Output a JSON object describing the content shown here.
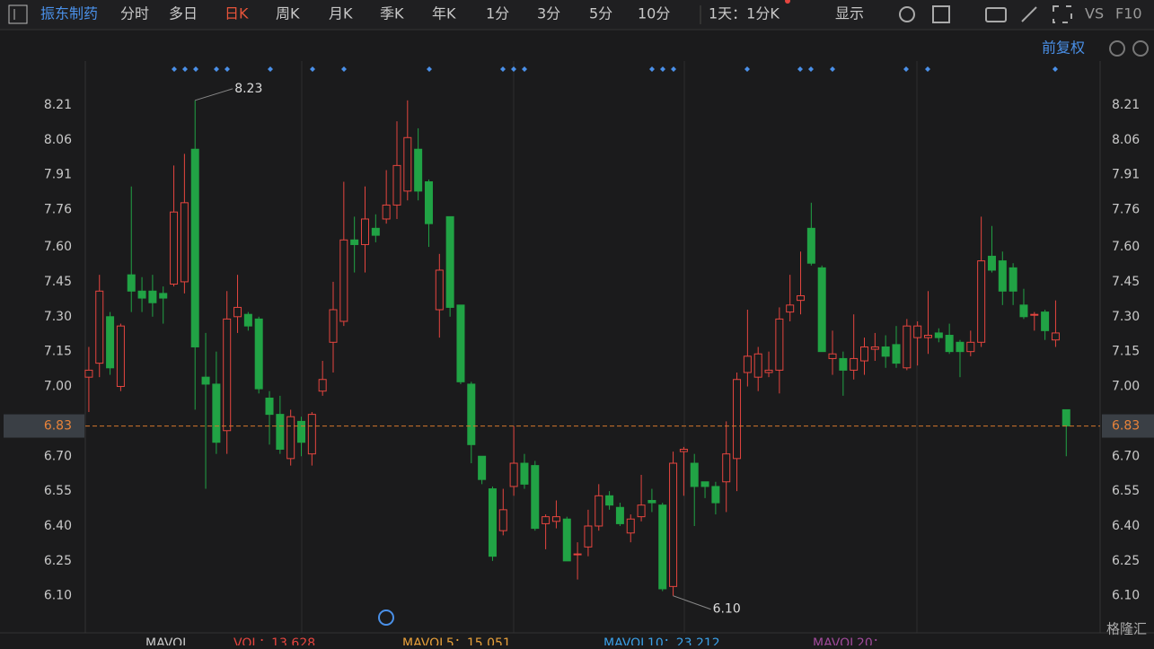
{
  "toolbar": {
    "stock": "振东制药",
    "tabs": [
      "分时",
      "多日",
      "日K",
      "周K",
      "月K",
      "季K",
      "年K",
      "1分",
      "3分",
      "5分",
      "10分"
    ],
    "period": "1天：1分K",
    "display": "显示",
    "vs": "VS",
    "f10": "F10",
    "adjust": "前复权"
  },
  "volume_legend": {
    "mavol": "MAVOL",
    "vol": "VOL：13.628",
    "mavol5": "MAVOL5：15.051",
    "mavol10": "MAVOL10：23.212",
    "mavol20": "MAVOL20："
  },
  "watermark": "格隆汇",
  "chart_data": {
    "type": "candlestick",
    "open": [
      7.04,
      7.1,
      7.3,
      7.0,
      7.48,
      7.41,
      7.41,
      7.4,
      7.44,
      7.45,
      8.02,
      7.04,
      7.01,
      6.81,
      7.3,
      7.31,
      7.29,
      6.95,
      6.88,
      6.69,
      6.85,
      6.71,
      6.98,
      7.19,
      7.28,
      7.63,
      7.61,
      7.68,
      7.72,
      7.78,
      7.84,
      8.02,
      7.88,
      7.33,
      7.73,
      7.35,
      7.01,
      6.7,
      6.56,
      6.38,
      6.57,
      6.67,
      6.66,
      6.41,
      6.42,
      6.43,
      6.28,
      6.31,
      6.4,
      6.53,
      6.48,
      6.37,
      6.44,
      6.51,
      6.49,
      6.14,
      6.72,
      6.67,
      6.59,
      6.57,
      6.59,
      6.69,
      7.06,
      7.04,
      7.06,
      7.07,
      7.32,
      7.37,
      7.68,
      7.51,
      7.12,
      7.12,
      7.07,
      7.11,
      7.16,
      7.17,
      7.18,
      7.08,
      7.21,
      7.21,
      7.23,
      7.22,
      7.19,
      7.15,
      7.19,
      7.56,
      7.54,
      7.51,
      7.35,
      7.31,
      7.32,
      7.2,
      6.9
    ],
    "high": [
      7.17,
      7.48,
      7.32,
      7.27,
      7.86,
      7.47,
      7.48,
      7.43,
      7.95,
      8.0,
      8.23,
      7.23,
      7.15,
      7.41,
      7.48,
      7.32,
      7.3,
      6.98,
      6.96,
      6.9,
      6.87,
      6.89,
      7.11,
      7.45,
      7.88,
      7.73,
      7.86,
      7.74,
      7.93,
      8.14,
      8.23,
      8.11,
      7.89,
      7.57,
      7.73,
      7.35,
      7.02,
      6.7,
      6.57,
      6.56,
      6.83,
      6.71,
      6.68,
      6.45,
      6.51,
      6.44,
      6.33,
      6.47,
      6.58,
      6.55,
      6.5,
      6.45,
      6.62,
      6.56,
      6.5,
      6.72,
      6.74,
      6.71,
      6.59,
      6.59,
      6.85,
      7.06,
      7.33,
      7.17,
      7.15,
      7.34,
      7.48,
      7.58,
      7.79,
      7.52,
      7.24,
      7.15,
      7.31,
      7.21,
      7.23,
      7.22,
      7.26,
      7.29,
      7.28,
      7.41,
      7.25,
      7.27,
      7.2,
      7.24,
      7.73,
      7.69,
      7.58,
      7.53,
      7.42,
      7.32,
      7.33,
      7.37,
      6.9
    ],
    "low": [
      6.89,
      7.04,
      7.05,
      6.98,
      7.32,
      7.32,
      7.3,
      7.27,
      7.43,
      7.4,
      6.9,
      6.56,
      6.71,
      6.71,
      7.23,
      7.24,
      6.97,
      6.75,
      6.71,
      6.66,
      6.7,
      6.66,
      6.96,
      7.06,
      7.26,
      7.49,
      7.49,
      7.62,
      7.7,
      7.72,
      7.8,
      7.8,
      7.6,
      7.21,
      7.3,
      7.01,
      6.67,
      6.58,
      6.25,
      6.36,
      6.53,
      6.56,
      6.38,
      6.3,
      6.39,
      6.25,
      6.17,
      6.27,
      6.38,
      6.47,
      6.4,
      6.33,
      6.42,
      6.46,
      6.12,
      6.1,
      6.53,
      6.4,
      6.52,
      6.45,
      6.46,
      6.55,
      7.0,
      6.98,
      7.04,
      6.97,
      7.28,
      7.31,
      7.52,
      7.15,
      7.05,
      6.96,
      7.03,
      7.05,
      7.11,
      7.08,
      7.08,
      7.07,
      7.09,
      7.14,
      7.19,
      7.14,
      7.04,
      7.13,
      7.17,
      7.49,
      7.35,
      7.35,
      7.29,
      7.24,
      7.2,
      7.17,
      6.7
    ],
    "close": [
      7.07,
      7.41,
      7.08,
      7.26,
      7.41,
      7.38,
      7.36,
      7.38,
      7.75,
      7.79,
      7.17,
      7.01,
      6.76,
      7.29,
      7.34,
      7.26,
      6.99,
      6.88,
      6.73,
      6.87,
      6.76,
      6.88,
      7.03,
      7.33,
      7.63,
      7.61,
      7.72,
      7.65,
      7.78,
      7.95,
      8.07,
      7.84,
      7.7,
      7.5,
      7.34,
      7.02,
      6.75,
      6.6,
      6.27,
      6.47,
      6.67,
      6.58,
      6.39,
      6.44,
      6.44,
      6.25,
      6.28,
      6.4,
      6.53,
      6.49,
      6.41,
      6.43,
      6.49,
      6.5,
      6.13,
      6.67,
      6.73,
      6.57,
      6.57,
      6.5,
      6.71,
      7.03,
      7.13,
      7.14,
      7.07,
      7.29,
      7.35,
      7.39,
      7.53,
      7.15,
      7.14,
      7.07,
      7.12,
      7.17,
      7.17,
      7.13,
      7.1,
      7.26,
      7.26,
      7.22,
      7.21,
      7.15,
      7.15,
      7.19,
      7.54,
      7.5,
      7.41,
      7.41,
      7.3,
      7.31,
      7.24,
      7.23,
      6.83
    ],
    "up_color": "#e5453f",
    "down_color": "#21a345",
    "ylim": [
      5.96,
      8.43
    ],
    "yticks": [
      8.21,
      8.06,
      7.91,
      7.76,
      {
        "value": 7.6,
        "label": "7.60"
      },
      7.45,
      {
        "value": 7.3,
        "label": "7.30"
      },
      7.15,
      {
        "value": 7,
        "label": "7.00"
      },
      {
        "value": 6.7,
        "label": "6.70"
      },
      6.55,
      {
        "value": 6.4,
        "label": "6.40"
      },
      6.25,
      {
        "value": 6.1,
        "label": "6.10"
      }
    ],
    "last_price": 6.83,
    "annotations": [
      {
        "text": "8.23",
        "value": 8.23
      },
      {
        "text": "6.10",
        "value": 6.1
      }
    ]
  }
}
